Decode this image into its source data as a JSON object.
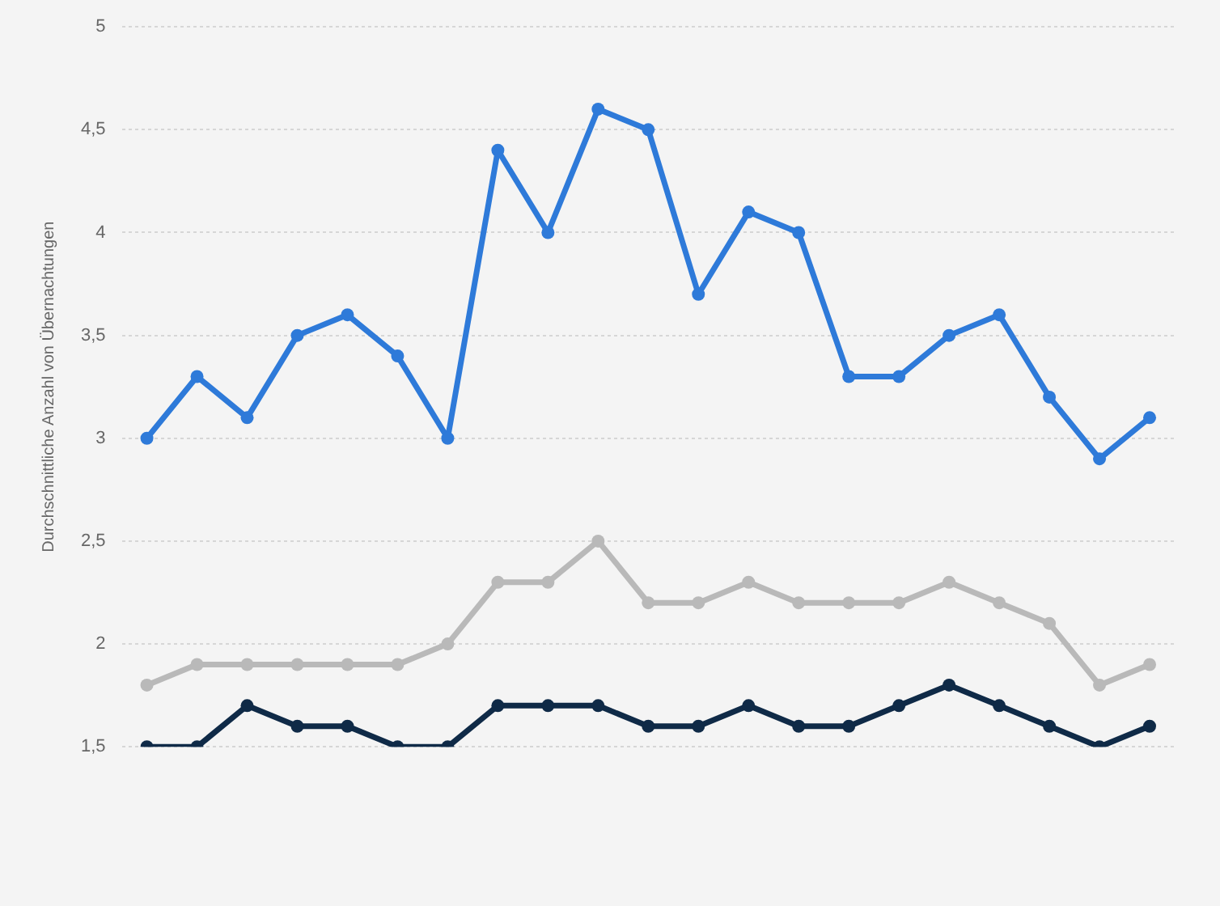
{
  "chart_data": {
    "type": "line",
    "ylabel": "Durchschnittliche Anzahl von Übernachtungen",
    "categories": [
      null,
      null,
      null,
      null,
      null,
      null,
      null,
      null,
      null,
      null,
      null,
      null,
      null,
      null,
      null,
      null,
      null,
      null,
      null,
      null,
      null
    ],
    "series": [
      {
        "color": "#2e7ad9",
        "values": [
          3,
          3.3,
          3.1,
          3.5,
          3.6,
          3.4,
          3.0,
          4.4,
          4.0,
          4.6,
          4.5,
          3.7,
          4.1,
          4.0,
          3.3,
          3.3,
          3.5,
          3.6,
          3.2,
          2.9,
          3.1
        ]
      },
      {
        "color": "#b9b9b9",
        "values": [
          1.8,
          1.9,
          1.9,
          1.9,
          1.9,
          1.9,
          2.0,
          2.3,
          2.3,
          2.5,
          2.2,
          2.2,
          2.3,
          2.2,
          2.2,
          2.2,
          2.3,
          2.2,
          2.1,
          1.8,
          1.9
        ]
      },
      {
        "color": "#0f2a47",
        "values": [
          1.5,
          1.5,
          1.7,
          1.6,
          1.6,
          1.5,
          1.5,
          1.7,
          1.7,
          1.7,
          1.6,
          1.6,
          1.7,
          1.6,
          1.6,
          1.7,
          1.8,
          1.7,
          1.6,
          1.5,
          1.6
        ]
      }
    ],
    "ylim": [
      1.5,
      5
    ],
    "yticks": [
      {
        "value": 1.5,
        "label": "1,5"
      },
      2,
      {
        "value": 2.5,
        "label": "2,5"
      },
      3,
      {
        "value": 3.5,
        "label": "3,5"
      },
      4,
      {
        "value": 4.5,
        "label": "4,5"
      },
      5
    ],
    "grid": "y",
    "marker": "circle",
    "line_style": "solid",
    "legend": false
  }
}
